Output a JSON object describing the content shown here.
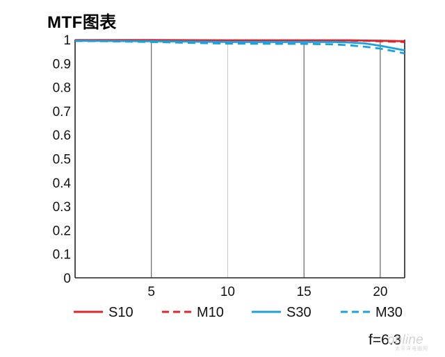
{
  "title": "MTF图表",
  "aperture_label": "f=6.3",
  "watermark": {
    "main": "online",
    "sub": "太平洋电脑网"
  },
  "chart_data": {
    "type": "line",
    "title": "MTF图表",
    "xlabel": "",
    "ylabel": "",
    "xlim": [
      0,
      21.6
    ],
    "ylim": [
      0,
      1
    ],
    "x_ticks": [
      5,
      10,
      15,
      20
    ],
    "y_ticks": [
      0,
      0.1,
      0.2,
      0.3,
      0.4,
      0.5,
      0.6,
      0.7,
      0.8,
      0.9,
      1
    ],
    "y_tick_labels": [
      "0",
      "0.1",
      "0.2",
      "0.3",
      "0.4",
      "0.5",
      "0.6",
      "0.7",
      "0.8",
      "0.9",
      "1"
    ],
    "grid": {
      "vertical": true,
      "horizontal": false
    },
    "legend_position": "bottom",
    "series": [
      {
        "name": "S10",
        "color": "#d9252c",
        "dash": "solid",
        "x": [
          0,
          5,
          10,
          15,
          18,
          19,
          20,
          21,
          21.6
        ],
        "y": [
          0.998,
          0.998,
          0.997,
          0.997,
          0.997,
          0.996,
          0.995,
          0.994,
          0.993
        ]
      },
      {
        "name": "M10",
        "color": "#d9252c",
        "dash": "dashed",
        "x": [
          0,
          5,
          10,
          15,
          18,
          19,
          20,
          21,
          21.6
        ],
        "y": [
          0.996,
          0.996,
          0.996,
          0.996,
          0.996,
          0.995,
          0.993,
          0.991,
          0.99
        ]
      },
      {
        "name": "S30",
        "color": "#1da1db",
        "dash": "solid",
        "x": [
          0,
          5,
          10,
          15,
          17,
          18,
          19,
          20,
          21,
          21.6
        ],
        "y": [
          0.995,
          0.993,
          0.99,
          0.99,
          0.99,
          0.988,
          0.984,
          0.974,
          0.962,
          0.955
        ]
      },
      {
        "name": "M30",
        "color": "#1da1db",
        "dash": "dashed",
        "x": [
          0,
          2,
          5,
          10,
          15,
          17,
          18,
          19,
          20,
          21,
          21.6
        ],
        "y": [
          0.994,
          0.993,
          0.99,
          0.983,
          0.982,
          0.98,
          0.976,
          0.97,
          0.962,
          0.95,
          0.942
        ]
      }
    ]
  }
}
